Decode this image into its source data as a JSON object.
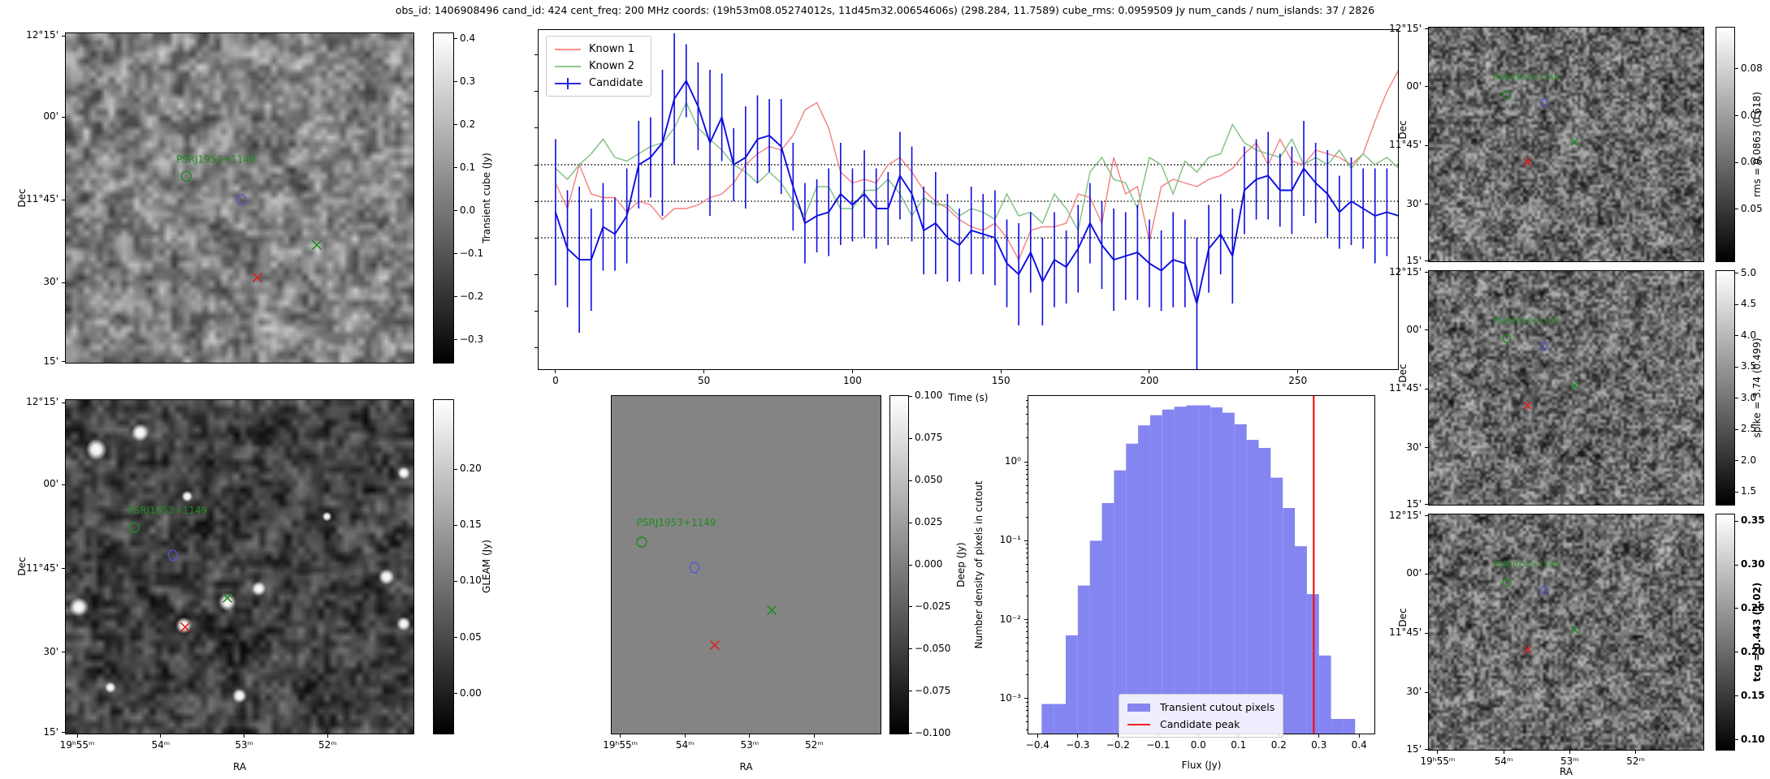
{
  "header": {
    "title": "obs_id: 1406908496 cand_id: 424 cent_freq: 200 MHz coords: (19h53m08.05274012s, 11d45m32.00654606s) (298.284, 11.7589) cube_rms: 0.0959509 Jy num_cands / num_islands: 37 / 2826"
  },
  "colors": {
    "known1": "#f67f7f",
    "known2": "#7fbf7f",
    "candidate": "#0d0de0",
    "hist_fill": "#8585f2",
    "vline": "#ff0000",
    "marker_green": "#1e8c1e",
    "marker_blue": "#5056d6",
    "marker_red": "#e02020",
    "deep_gray": "#848484"
  },
  "axes": {
    "dec_label": "Dec",
    "ra_label": "RA",
    "dec_ticks": [
      "12°15'",
      "00'",
      "11°45'",
      "30'",
      "15'"
    ],
    "ra_ticks": [
      "19ʰ55ᵐ",
      "54ᵐ",
      "53ᵐ",
      "52ᵐ"
    ]
  },
  "markers": {
    "label": "PSRJ1953+1149",
    "transient": {
      "label_xy": [
        0.318,
        0.393
      ],
      "circle": [
        0.347,
        0.434
      ],
      "island": [
        0.505,
        0.507
      ],
      "green_x": [
        0.721,
        0.642
      ],
      "red_x": [
        0.551,
        0.74
      ]
    },
    "gleam": {
      "label_xy": [
        0.18,
        0.342
      ],
      "circle": [
        0.198,
        0.383
      ],
      "island": [
        0.309,
        0.467
      ],
      "green_x": [
        0.465,
        0.593
      ],
      "red_x": [
        0.344,
        0.68
      ]
    },
    "deep": {
      "label_xy": [
        0.095,
        0.385
      ],
      "circle": [
        0.114,
        0.433
      ],
      "island": [
        0.309,
        0.51
      ],
      "green_x": [
        0.595,
        0.634
      ],
      "red_x": [
        0.384,
        0.737
      ]
    },
    "right": {
      "label_xy": [
        0.235,
        0.225
      ],
      "circle": [
        0.285,
        0.29
      ],
      "island": [
        0.42,
        0.325
      ],
      "green_x": [
        0.53,
        0.49
      ],
      "red_x": [
        0.36,
        0.575
      ]
    }
  },
  "colorbars": {
    "transient": {
      "label": "Transient cube (Jy)",
      "vmax": 0.415,
      "vmin": -0.355,
      "ticks": [
        [
          0.4,
          "0.4"
        ],
        [
          0.3,
          "0.3"
        ],
        [
          0.2,
          "0.2"
        ],
        [
          0.1,
          "0.1"
        ],
        [
          0.0,
          "0.0"
        ],
        [
          -0.1,
          "−0.1"
        ],
        [
          -0.2,
          "−0.2"
        ],
        [
          -0.3,
          "−0.3"
        ]
      ]
    },
    "gleam": {
      "label": "GLEAM (Jy)",
      "vmax": 0.2625,
      "vmin": -0.0365,
      "ticks": [
        [
          0.2,
          "0.20"
        ],
        [
          0.15,
          "0.15"
        ],
        [
          0.1,
          "0.10"
        ],
        [
          0.05,
          "0.05"
        ],
        [
          0.0,
          "0.00"
        ]
      ]
    },
    "deep": {
      "label": "Deep (Jy)",
      "vmax": 0.1007,
      "vmin": -0.1007,
      "ticks": [
        [
          0.1,
          "0.100"
        ],
        [
          0.075,
          "0.075"
        ],
        [
          0.05,
          "0.050"
        ],
        [
          0.025,
          "0.025"
        ],
        [
          0.0,
          "0.000"
        ],
        [
          -0.025,
          "−0.025"
        ],
        [
          -0.05,
          "−0.050"
        ],
        [
          -0.075,
          "−0.075"
        ],
        [
          -0.1,
          "−0.100"
        ]
      ]
    },
    "rms": {
      "label": "rms = 0.0863 (0.618)",
      "vmax": 0.089,
      "vmin": 0.0387,
      "ticks": [
        [
          0.08,
          "0.08"
        ],
        [
          0.07,
          "0.07"
        ],
        [
          0.06,
          "0.06"
        ],
        [
          0.05,
          "0.05"
        ]
      ]
    },
    "spike": {
      "label": "spike = 3.74 (0.499)",
      "vmax": 5.05,
      "vmin": 1.28,
      "ticks": [
        [
          5.0,
          "5.0"
        ],
        [
          4.5,
          "4.5"
        ],
        [
          4.0,
          "4.0"
        ],
        [
          3.5,
          "3.5"
        ],
        [
          3.0,
          "3.0"
        ],
        [
          2.5,
          "2.5"
        ],
        [
          2.0,
          "2.0"
        ],
        [
          1.5,
          "1.5"
        ]
      ]
    },
    "tcg": {
      "label": "tcg = 0.443 (1.02)",
      "bold": true,
      "vmax": 0.3585,
      "vmin": 0.0875,
      "ticks": [
        [
          0.35,
          "0.35"
        ],
        [
          0.3,
          "0.30"
        ],
        [
          0.25,
          "0.25"
        ],
        [
          0.2,
          "0.20"
        ],
        [
          0.15,
          "0.15"
        ],
        [
          0.1,
          "0.10"
        ]
      ]
    }
  },
  "gleam_spots": [
    [
      0.09,
      0.15,
      13
    ],
    [
      0.215,
      0.1,
      11
    ],
    [
      0.04,
      0.62,
      12
    ],
    [
      0.34,
      0.675,
      10
    ],
    [
      0.465,
      0.605,
      11
    ],
    [
      0.555,
      0.565,
      9
    ],
    [
      0.92,
      0.53,
      10
    ],
    [
      0.97,
      0.67,
      9
    ],
    [
      0.5,
      0.885,
      9
    ],
    [
      0.97,
      0.22,
      8
    ],
    [
      0.35,
      0.29,
      7
    ],
    [
      0.75,
      0.35,
      6
    ],
    [
      0.13,
      0.86,
      7
    ]
  ],
  "chart_data": [
    {
      "type": "line",
      "xlabel": "Time (s)",
      "x_start": 0,
      "x_step": 4,
      "xlim": [
        -6,
        284
      ],
      "ylim": [
        -0.462,
        0.471
      ],
      "xticks": [
        0,
        50,
        100,
        150,
        200,
        250
      ],
      "hlines": [
        0.1,
        0.0,
        -0.1
      ],
      "legend_position": "upper left",
      "series": [
        {
          "name": "Known 1",
          "color": "#f67f7f",
          "values": [
            0.05,
            -0.02,
            0.1,
            0.02,
            0.01,
            0.01,
            -0.03,
            0.0,
            -0.01,
            -0.05,
            -0.02,
            -0.02,
            -0.01,
            0.01,
            0.02,
            0.05,
            0.1,
            0.13,
            0.15,
            0.14,
            0.18,
            0.25,
            0.27,
            0.2,
            0.08,
            0.05,
            0.06,
            0.05,
            0.1,
            0.12,
            0.08,
            0.03,
            0.0,
            -0.02,
            -0.05,
            -0.07,
            -0.08,
            -0.06,
            -0.1,
            -0.16,
            -0.08,
            -0.07,
            -0.07,
            -0.06,
            0.02,
            0.01,
            -0.06,
            0.12,
            0.02,
            0.04,
            -0.11,
            0.04,
            0.06,
            0.05,
            0.04,
            0.06,
            0.07,
            0.09,
            0.13,
            0.16,
            0.1,
            0.17,
            0.11,
            0.1,
            0.14,
            0.13,
            0.12,
            0.1,
            0.13,
            0.22,
            0.3,
            0.36
          ]
        },
        {
          "name": "Known 2",
          "color": "#7fbf7f",
          "values": [
            0.09,
            0.06,
            0.1,
            0.13,
            0.17,
            0.12,
            0.11,
            0.13,
            0.15,
            0.16,
            0.2,
            0.27,
            0.2,
            0.17,
            0.14,
            0.1,
            0.08,
            0.05,
            0.08,
            0.05,
            0.0,
            -0.04,
            0.04,
            0.04,
            -0.02,
            -0.02,
            0.03,
            0.03,
            0.06,
            0.02,
            -0.04,
            0.01,
            -0.01,
            -0.01,
            -0.04,
            -0.02,
            -0.03,
            -0.05,
            0.02,
            -0.04,
            -0.03,
            -0.06,
            0.02,
            -0.02,
            -0.08,
            0.08,
            0.12,
            0.06,
            0.05,
            -0.02,
            0.12,
            0.1,
            0.02,
            0.11,
            0.08,
            0.12,
            0.13,
            0.21,
            0.16,
            0.14,
            0.13,
            0.12,
            0.17,
            0.1,
            0.12,
            0.1,
            0.14,
            0.09,
            0.13,
            0.1,
            0.12,
            0.09
          ]
        },
        {
          "name": "Candidate",
          "color": "#0d0de0",
          "values": [
            -0.03,
            -0.13,
            -0.16,
            -0.16,
            -0.07,
            -0.09,
            -0.04,
            0.1,
            0.12,
            0.16,
            0.28,
            0.33,
            0.26,
            0.16,
            0.23,
            0.1,
            0.12,
            0.17,
            0.18,
            0.15,
            0.04,
            -0.06,
            -0.04,
            -0.03,
            0.02,
            -0.01,
            0.02,
            -0.02,
            -0.02,
            0.07,
            0.02,
            -0.08,
            -0.06,
            -0.1,
            -0.12,
            -0.08,
            -0.09,
            -0.1,
            -0.17,
            -0.2,
            -0.14,
            -0.22,
            -0.16,
            -0.18,
            -0.13,
            -0.06,
            -0.12,
            -0.16,
            -0.15,
            -0.14,
            -0.17,
            -0.19,
            -0.16,
            -0.17,
            -0.28,
            -0.13,
            -0.09,
            -0.15,
            0.03,
            0.06,
            0.07,
            0.03,
            0.03,
            0.09,
            0.05,
            0.02,
            -0.03,
            0.0,
            -0.02,
            -0.04,
            -0.03,
            -0.04
          ],
          "errors": [
            0.2,
            0.16,
            0.2,
            0.14,
            0.12,
            0.1,
            0.13,
            0.12,
            0.11,
            0.2,
            0.18,
            0.1,
            0.12,
            0.2,
            0.12,
            0.1,
            0.14,
            0.12,
            0.1,
            0.13,
            0.12,
            0.11,
            0.1,
            0.12,
            0.14,
            0.1,
            0.12,
            0.11,
            0.1,
            0.12,
            0.13,
            0.12,
            0.14,
            0.12,
            0.1,
            0.12,
            0.11,
            0.13,
            0.12,
            0.14,
            0.11,
            0.12,
            0.13,
            0.1,
            0.12,
            0.11,
            0.12,
            0.14,
            0.12,
            0.13,
            0.12,
            0.11,
            0.13,
            0.12,
            0.18,
            0.12,
            0.11,
            0.13,
            0.12,
            0.11,
            0.12,
            0.1,
            0.12,
            0.13,
            0.11,
            0.12,
            0.1,
            0.12,
            0.11,
            0.13,
            0.12,
            0.12
          ]
        }
      ]
    },
    {
      "type": "bar",
      "xlabel": "Flux (Jy)",
      "ylabel": "Number density of pixels in cutout",
      "bin_start": -0.39,
      "bin_width": 0.03,
      "values": [
        0.00085,
        0.00085,
        0.0063,
        0.027,
        0.1,
        0.3,
        0.78,
        1.7,
        2.9,
        3.9,
        4.6,
        5.0,
        5.2,
        5.2,
        4.9,
        4.2,
        3.0,
        1.9,
        1.5,
        0.63,
        0.26,
        0.085,
        0.021,
        0.0035,
        0.00055,
        0.00055
      ],
      "vline": 0.287,
      "vline_label": "Candidate peak",
      "hist_label": "Transient cutout pixels",
      "xlim": [
        -0.425,
        0.44
      ],
      "ylog": true,
      "ylim": [
        0.00035,
        7
      ],
      "xticks": [
        -0.4,
        -0.3,
        -0.2,
        -0.1,
        0.0,
        0.1,
        0.2,
        0.3,
        0.4
      ],
      "xtick_labels": [
        "−0.4",
        "−0.3",
        "−0.2",
        "−0.1",
        "0.0",
        "0.1",
        "0.2",
        "0.3",
        "0.4"
      ],
      "ytick_values": [
        1,
        0.1,
        0.01,
        0.001
      ],
      "ytick_labels": [
        "10⁰",
        "10⁻¹",
        "10⁻²",
        "10⁻³"
      ],
      "legend_position": "lower center"
    }
  ]
}
